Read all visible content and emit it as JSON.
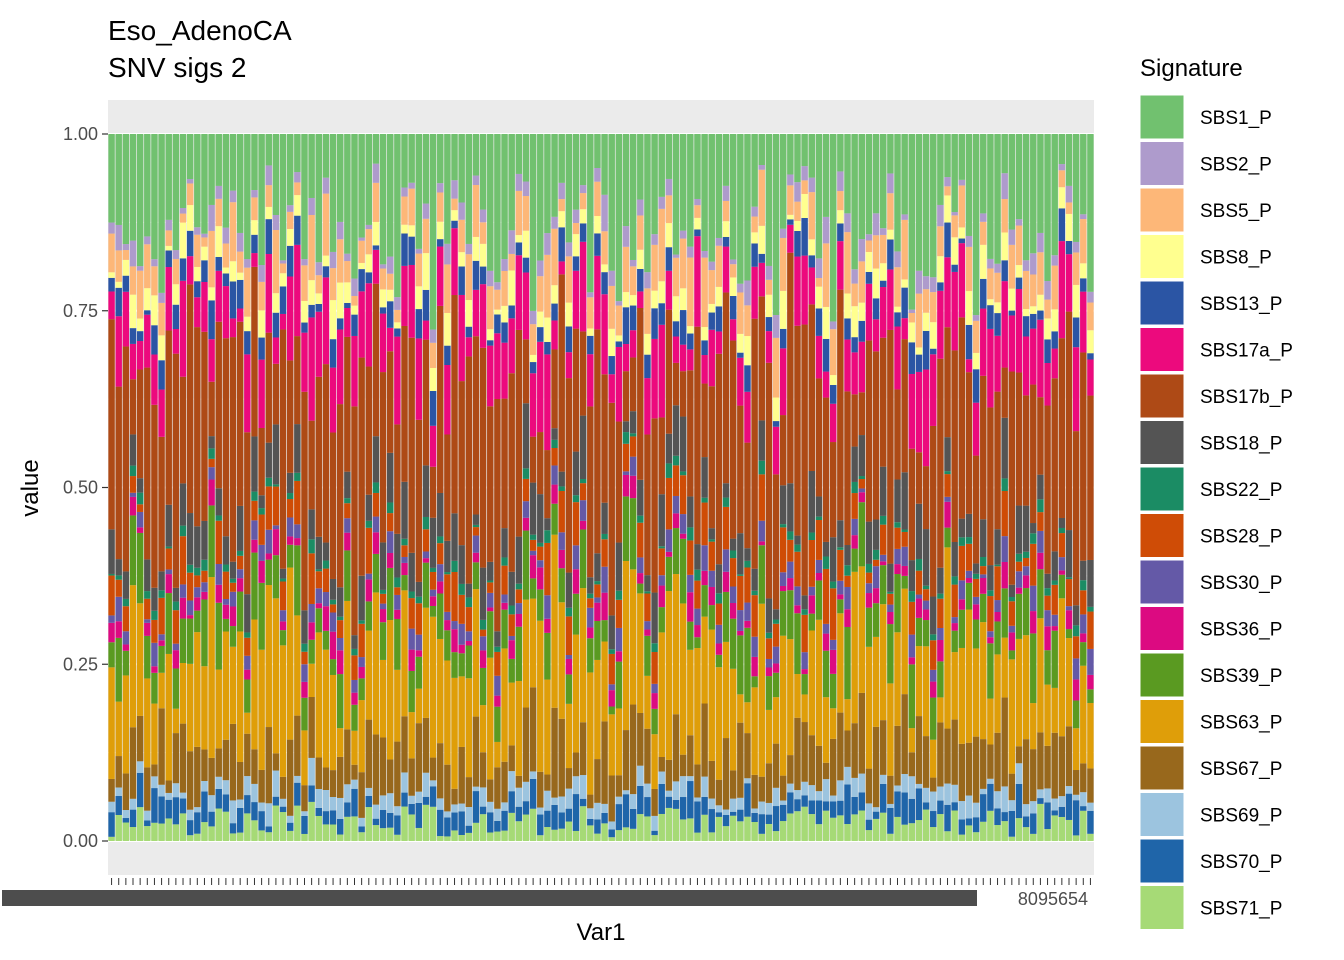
{
  "chart_data": {
    "type": "bar",
    "stacked": true,
    "title": [
      "Eso_AdenoCA",
      "SNV sigs 2"
    ],
    "xlabel": "Var1",
    "ylabel": "value",
    "ylim": [
      0,
      1
    ],
    "yticks": [
      "0.00",
      "0.25",
      "0.50",
      "0.75",
      "1.00"
    ],
    "n_samples": 138,
    "x_tick_labels_visible": "overlapping and illegible except trailing fragment",
    "x_tick_fragment": "8095654",
    "grid": true,
    "legend": {
      "title": "Signature",
      "position": "right",
      "entries": [
        {
          "name": "SBS1_P",
          "color": "#71C16F"
        },
        {
          "name": "SBS2_P",
          "color": "#AE9BCC"
        },
        {
          "name": "SBS5_P",
          "color": "#FDB778"
        },
        {
          "name": "SBS8_P",
          "color": "#FFFF8F"
        },
        {
          "name": "SBS13_P",
          "color": "#2B55A4"
        },
        {
          "name": "SBS17a_P",
          "color": "#EC0A7D"
        },
        {
          "name": "SBS17b_P",
          "color": "#AE4A16"
        },
        {
          "name": "SBS18_P",
          "color": "#545454"
        },
        {
          "name": "SBS22_P",
          "color": "#1B8C64"
        },
        {
          "name": "SBS28_P",
          "color": "#CF4C06"
        },
        {
          "name": "SBS30_P",
          "color": "#6459A7"
        },
        {
          "name": "SBS36_P",
          "color": "#DC0A81"
        },
        {
          "name": "SBS39_P",
          "color": "#5A9A21"
        },
        {
          "name": "SBS63_P",
          "color": "#DF9E09"
        },
        {
          "name": "SBS67_P",
          "color": "#98681C"
        },
        {
          "name": "SBS69_P",
          "color": "#9CC4DF"
        },
        {
          "name": "SBS70_P",
          "color": "#1F65A9"
        },
        {
          "name": "SBS71_P",
          "color": "#A6DA76"
        }
      ]
    },
    "stack_order": [
      "SBS71_P",
      "SBS70_P",
      "SBS69_P",
      "SBS67_P",
      "SBS63_P",
      "SBS39_P",
      "SBS36_P",
      "SBS30_P",
      "SBS28_P",
      "SBS22_P",
      "SBS18_P",
      "SBS17b_P",
      "SBS17a_P",
      "SBS13_P",
      "SBS8_P",
      "SBS5_P",
      "SBS2_P",
      "SBS1_P"
    ],
    "typical_composition": {
      "SBS71_P": 0.03,
      "SBS70_P": 0.03,
      "SBS69_P": 0.02,
      "SBS67_P": 0.07,
      "SBS63_P": 0.14,
      "SBS39_P": 0.06,
      "SBS36_P": 0.02,
      "SBS30_P": 0.02,
      "SBS28_P": 0.04,
      "SBS22_P": 0.01,
      "SBS18_P": 0.05,
      "SBS17b_P": 0.25,
      "SBS17a_P": 0.08,
      "SBS13_P": 0.03,
      "SBS8_P": 0.03,
      "SBS5_P": 0.05,
      "SBS2_P": 0.02,
      "SBS1_P": 0.15
    }
  }
}
